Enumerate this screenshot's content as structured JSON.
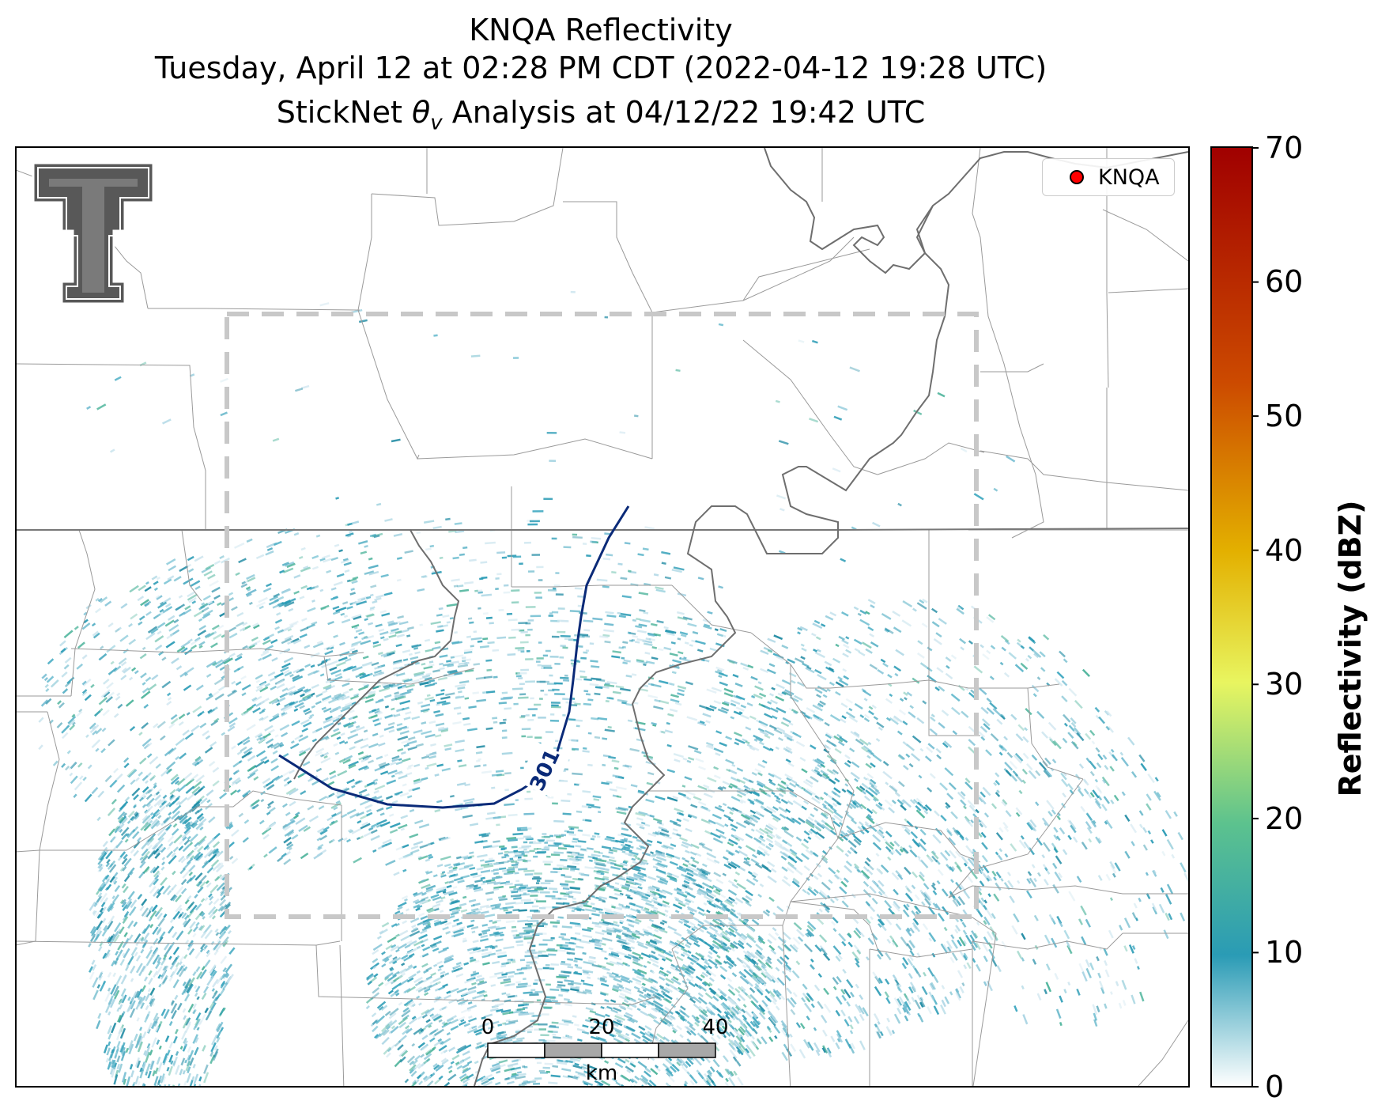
{
  "title": {
    "line1": "KNQA Reflectivity",
    "line2": "Tuesday, April 12 at 02:28 PM CDT (2022-04-12 19:28 UTC)",
    "line3_prefix": "StickNet ",
    "line3_theta": "θ",
    "line3_sub": "v",
    "line3_suffix": " Analysis at 04/12/22 19:42 UTC"
  },
  "legend": {
    "label": "KNQA",
    "marker_color": "#ff0000"
  },
  "colorbar": {
    "label": "Reflectivity (dBZ)",
    "ticks": [
      "70",
      "60",
      "50",
      "40",
      "30",
      "20",
      "10",
      "0"
    ],
    "range": [
      0,
      70
    ],
    "colors": [
      "#ffffff",
      "#2a9bb5",
      "#5cc28e",
      "#e8f560",
      "#e3b000",
      "#cc4a00",
      "#a00000"
    ]
  },
  "contour": {
    "label": "301",
    "color": "#0a2a78"
  },
  "scalebar": {
    "ticks": [
      "0",
      "20",
      "40"
    ],
    "unit": "km"
  },
  "logo": {
    "icon": "texas-tech-double-t-logo"
  }
}
